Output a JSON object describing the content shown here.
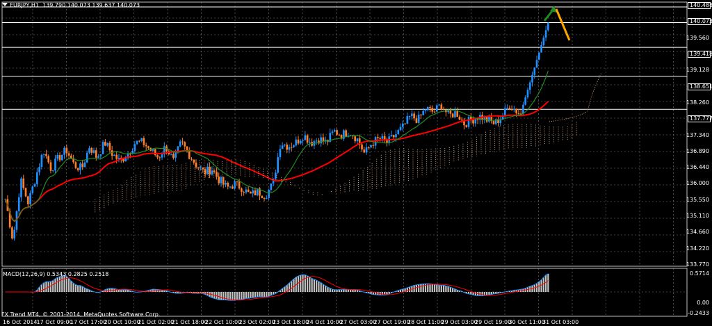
{
  "header": {
    "symbol": "EURJPY,H1",
    "ohlc": "139.790 140.073 139.637 140.073"
  },
  "macd_header": "MACD(12,26,9) 0.5343 0.2825 0.2518",
  "copyright": "FX Trend MT4, © 2001-2014, MetaQuotes Software Corp.",
  "colors": {
    "background": "#000000",
    "grid": "#808080",
    "bull_candle": "#1E90FF",
    "bear_candle": "#FF7F27",
    "ma_fast": "#FF0000",
    "ma_slow": "#228B22",
    "ichimoku_cloud": "#D2A07A",
    "macd_hist": "#C0C0C0",
    "macd_line": "#1E90FF",
    "signal_line": "#FF0000",
    "arrow_up": "#228B22",
    "arrow_down": "#FFA500"
  },
  "price_axis": {
    "ticks": [
      "140.488",
      "140.073",
      "139.560",
      "139.418",
      "139.128",
      "138.651",
      "138.260",
      "137.777",
      "137.340",
      "136.890",
      "136.440",
      "136.000",
      "135.550",
      "135.110",
      "134.660",
      "134.220",
      "133.770"
    ],
    "boxed": [
      "140.488",
      "140.073",
      "139.418",
      "138.651",
      "137.777"
    ]
  },
  "macd_axis": {
    "ticks": [
      "0.5714",
      "0.00",
      "-0.2433"
    ]
  },
  "time_axis": {
    "labels": [
      "16 Oct 2014",
      "17 Oct 09:00",
      "17 Oct 17:00",
      "20 Oct 10:00",
      "21 Oct 02:00",
      "21 Oct 18:00",
      "22 Oct 10:00",
      "23 Oct 02:00",
      "23 Oct 18:00",
      "24 Oct 10:00",
      "27 Oct 03:00",
      "27 Oct 19:00",
      "28 Oct 11:00",
      "29 Oct 03:00",
      "29 Oct 19:00",
      "30 Oct 11:00",
      "31 Oct 03:00"
    ]
  },
  "chart_data": {
    "type": "candlestick",
    "symbol": "EURJPY",
    "timeframe": "H1",
    "ylim": [
      133.77,
      140.488
    ],
    "horizontal_levels": [
      140.488,
      140.073,
      139.418,
      138.651,
      137.777
    ],
    "close_series": [
      135.4,
      134.3,
      135.9,
      135.3,
      136.0,
      136.7,
      136.2,
      136.5,
      136.7,
      136.3,
      136.2,
      136.8,
      136.5,
      136.9,
      136.6,
      136.4,
      136.6,
      136.9,
      136.9,
      136.7,
      136.5,
      136.8,
      136.4,
      136.9,
      136.6,
      136.3,
      136.1,
      136.2,
      135.9,
      135.7,
      135.8,
      135.7,
      135.5,
      135.6,
      135.5,
      135.8,
      136.9,
      136.8,
      136.9,
      137.1,
      136.9,
      137.0,
      136.9,
      137.2,
      137.1,
      137.2,
      137.0,
      136.6,
      136.9,
      137.0,
      136.9,
      137.1,
      137.3,
      137.6,
      137.5,
      137.8,
      137.7,
      137.9,
      137.6,
      137.7,
      137.4,
      137.5,
      137.6,
      137.5,
      137.4,
      137.6,
      137.9,
      137.7,
      137.6,
      137.7,
      137.8,
      140.1
    ],
    "macd": {
      "label": "MACD(12,26,9)",
      "main": 0.5343,
      "signal": 0.2825,
      "histogram": 0.2518,
      "ylim": [
        -0.2433,
        0.5714
      ]
    }
  }
}
